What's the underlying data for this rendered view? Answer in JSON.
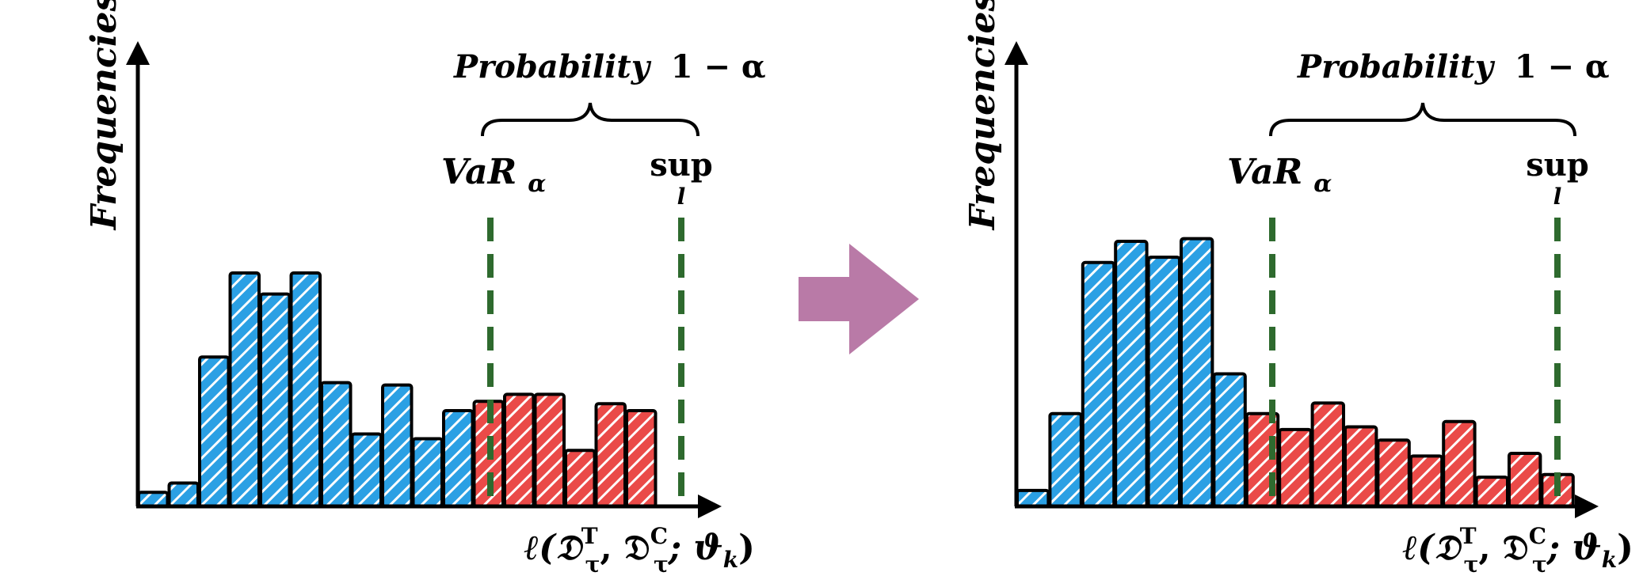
{
  "chart_data": [
    {
      "type": "bar",
      "title": "",
      "ylabel": "Frequencies",
      "xlabel": "ℓ(𝔇",
      "xlabel_sup_T": "T",
      "xlabel_sub_tau": "τ",
      "xlabel_mid": ", 𝔇",
      "xlabel_sup_C": "C",
      "xlabel_sub_tau2": "τ",
      "xlabel_end": "; ϑ",
      "xlabel_sub_k": "k",
      "xlabel_close": ")",
      "ylim": [
        0,
        100
      ],
      "values": [
        6,
        10,
        64,
        100,
        91,
        100,
        53,
        31,
        52,
        29,
        41,
        45,
        48,
        48,
        24,
        44,
        41
      ],
      "tail_start_index": 11,
      "var_label": "VaR",
      "var_sub": "α",
      "sup_label": "sup",
      "sup_sub": "l",
      "brace_label": "Probability",
      "brace_expr": "1 − α"
    },
    {
      "type": "bar",
      "title": "",
      "ylabel": "Frequencies",
      "xlabel": "ℓ(𝔇",
      "xlabel_sup_T": "T",
      "xlabel_sub_tau": "τ",
      "xlabel_mid": ", 𝔇",
      "xlabel_sup_C": "C",
      "xlabel_sub_tau2": "τ",
      "xlabel_end": "; ϑ",
      "xlabel_sub_k": "k",
      "xlabel_close": ")",
      "ylim": [
        0,
        100
      ],
      "values": [
        6,
        35,
        92,
        100,
        94,
        101,
        50,
        35,
        29,
        39,
        30,
        25,
        19,
        32,
        11,
        20,
        12
      ],
      "tail_start_index": 7,
      "var_label": "VaR",
      "var_sub": "α",
      "sup_label": "sup",
      "sup_sub": "l",
      "brace_label": "Probability",
      "brace_expr": "1 − α"
    }
  ],
  "colors": {
    "blue": "#2ba0e4",
    "red": "#ea4a48",
    "dashed_line": "#2e6a2e",
    "arrow": "#b97aa7",
    "outline": "#000000"
  }
}
